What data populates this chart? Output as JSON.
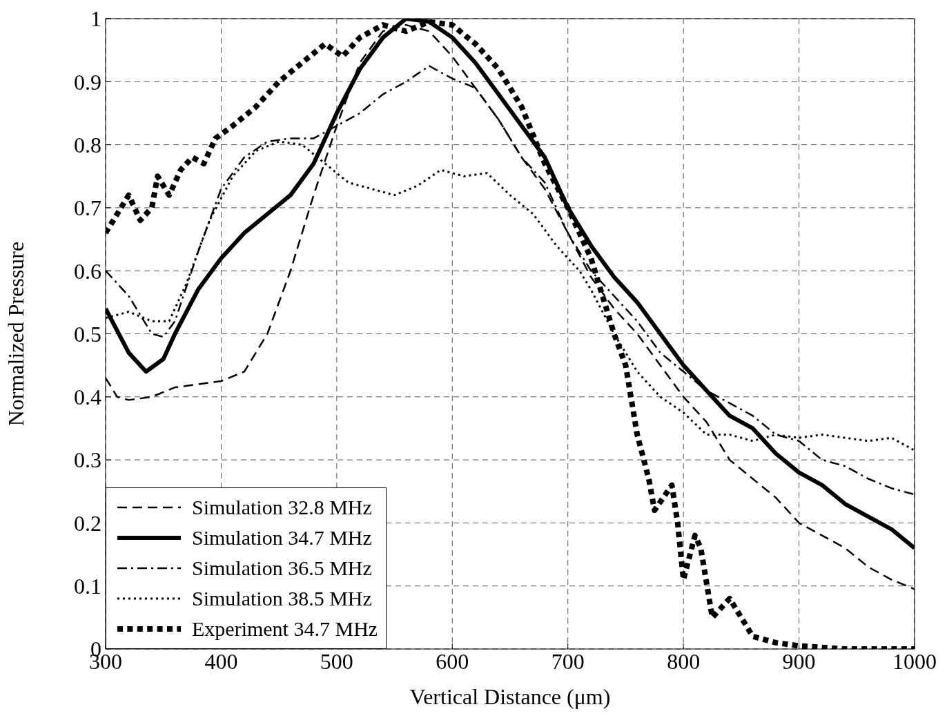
{
  "chart_data": {
    "type": "line",
    "xlabel": "Vertical Distance (μm)",
    "ylabel": "Normalized Pressure",
    "xlim": [
      300,
      1000
    ],
    "ylim": [
      0,
      1
    ],
    "xticks": [
      300,
      400,
      500,
      600,
      700,
      800,
      900,
      1000
    ],
    "yticks": [
      0,
      0.1,
      0.2,
      0.3,
      0.4,
      0.5,
      0.6,
      0.7,
      0.8,
      0.9,
      1
    ],
    "grid": true,
    "legend": "bottom left",
    "marker": "none",
    "series": [
      {
        "name": "Simulation 32.8 MHz",
        "color": "#000000",
        "line_style": "dashed",
        "x": [
          300,
          310,
          320,
          340,
          360,
          380,
          400,
          420,
          440,
          460,
          480,
          500,
          520,
          540,
          560,
          580,
          600,
          620,
          640,
          660,
          680,
          700,
          720,
          740,
          760,
          780,
          800,
          820,
          840,
          860,
          880,
          900,
          920,
          940,
          960,
          980,
          1000
        ],
        "values": [
          0.43,
          0.4,
          0.395,
          0.4,
          0.415,
          0.42,
          0.425,
          0.44,
          0.5,
          0.6,
          0.72,
          0.83,
          0.93,
          0.98,
          0.99,
          0.98,
          0.94,
          0.89,
          0.84,
          0.78,
          0.73,
          0.66,
          0.59,
          0.54,
          0.5,
          0.45,
          0.4,
          0.36,
          0.3,
          0.27,
          0.24,
          0.2,
          0.18,
          0.16,
          0.13,
          0.11,
          0.095
        ]
      },
      {
        "name": "Simulation 34.7 MHz",
        "color": "#000000",
        "line_style": "solid",
        "x": [
          300,
          320,
          335,
          350,
          360,
          380,
          400,
          420,
          440,
          460,
          480,
          500,
          520,
          540,
          560,
          580,
          600,
          620,
          640,
          660,
          680,
          700,
          720,
          740,
          760,
          780,
          800,
          820,
          840,
          860,
          880,
          900,
          920,
          940,
          960,
          980,
          1000
        ],
        "values": [
          0.54,
          0.47,
          0.44,
          0.46,
          0.5,
          0.57,
          0.62,
          0.66,
          0.69,
          0.72,
          0.77,
          0.85,
          0.92,
          0.97,
          1,
          0.995,
          0.97,
          0.93,
          0.88,
          0.83,
          0.78,
          0.7,
          0.64,
          0.59,
          0.55,
          0.5,
          0.45,
          0.41,
          0.37,
          0.35,
          0.31,
          0.28,
          0.26,
          0.23,
          0.21,
          0.19,
          0.16
        ]
      },
      {
        "name": "Simulation 36.5 MHz",
        "color": "#000000",
        "line_style": "dashdot",
        "x": [
          300,
          320,
          340,
          350,
          360,
          380,
          400,
          420,
          440,
          460,
          480,
          500,
          520,
          540,
          560,
          580,
          600,
          620,
          640,
          660,
          680,
          700,
          720,
          740,
          760,
          780,
          800,
          820,
          840,
          860,
          880,
          900,
          920,
          940,
          960,
          980,
          1000
        ],
        "values": [
          0.6,
          0.56,
          0.5,
          0.495,
          0.52,
          0.63,
          0.73,
          0.78,
          0.805,
          0.81,
          0.81,
          0.83,
          0.85,
          0.88,
          0.9,
          0.925,
          0.905,
          0.89,
          0.84,
          0.78,
          0.74,
          0.66,
          0.6,
          0.56,
          0.52,
          0.47,
          0.44,
          0.41,
          0.39,
          0.37,
          0.34,
          0.33,
          0.3,
          0.29,
          0.27,
          0.255,
          0.245
        ]
      },
      {
        "name": "Simulation 38.5 MHz",
        "color": "#000000",
        "line_style": "dotted",
        "x": [
          300,
          320,
          340,
          355,
          370,
          390,
          410,
          430,
          450,
          470,
          490,
          510,
          530,
          550,
          570,
          590,
          610,
          630,
          650,
          670,
          690,
          710,
          720,
          740,
          760,
          780,
          800,
          820,
          840,
          860,
          880,
          900,
          920,
          940,
          960,
          980,
          1000
        ],
        "values": [
          0.525,
          0.535,
          0.52,
          0.52,
          0.58,
          0.68,
          0.75,
          0.79,
          0.805,
          0.8,
          0.77,
          0.74,
          0.73,
          0.72,
          0.735,
          0.76,
          0.75,
          0.755,
          0.72,
          0.69,
          0.64,
          0.6,
          0.57,
          0.5,
          0.44,
          0.4,
          0.375,
          0.34,
          0.34,
          0.33,
          0.34,
          0.335,
          0.34,
          0.335,
          0.33,
          0.335,
          0.315
        ]
      },
      {
        "name": "Experiment 34.7 MHz",
        "color": "#000000",
        "line_style": "dotted",
        "x": [
          300,
          310,
          320,
          330,
          340,
          345,
          355,
          365,
          375,
          385,
          395,
          410,
          430,
          450,
          470,
          490,
          505,
          520,
          540,
          560,
          580,
          600,
          620,
          640,
          660,
          680,
          700,
          720,
          730,
          740,
          750,
          760,
          770,
          775,
          790,
          795,
          800,
          810,
          815,
          825,
          840,
          860,
          880,
          900,
          940,
          1000
        ],
        "values": [
          0.66,
          0.69,
          0.72,
          0.68,
          0.7,
          0.75,
          0.72,
          0.76,
          0.78,
          0.77,
          0.81,
          0.83,
          0.86,
          0.9,
          0.93,
          0.96,
          0.94,
          0.97,
          0.99,
          0.98,
          0.995,
          0.99,
          0.96,
          0.92,
          0.86,
          0.77,
          0.7,
          0.62,
          0.56,
          0.5,
          0.45,
          0.34,
          0.27,
          0.22,
          0.26,
          0.2,
          0.11,
          0.18,
          0.16,
          0.05,
          0.08,
          0.02,
          0.01,
          0.005,
          0,
          0
        ]
      }
    ]
  }
}
